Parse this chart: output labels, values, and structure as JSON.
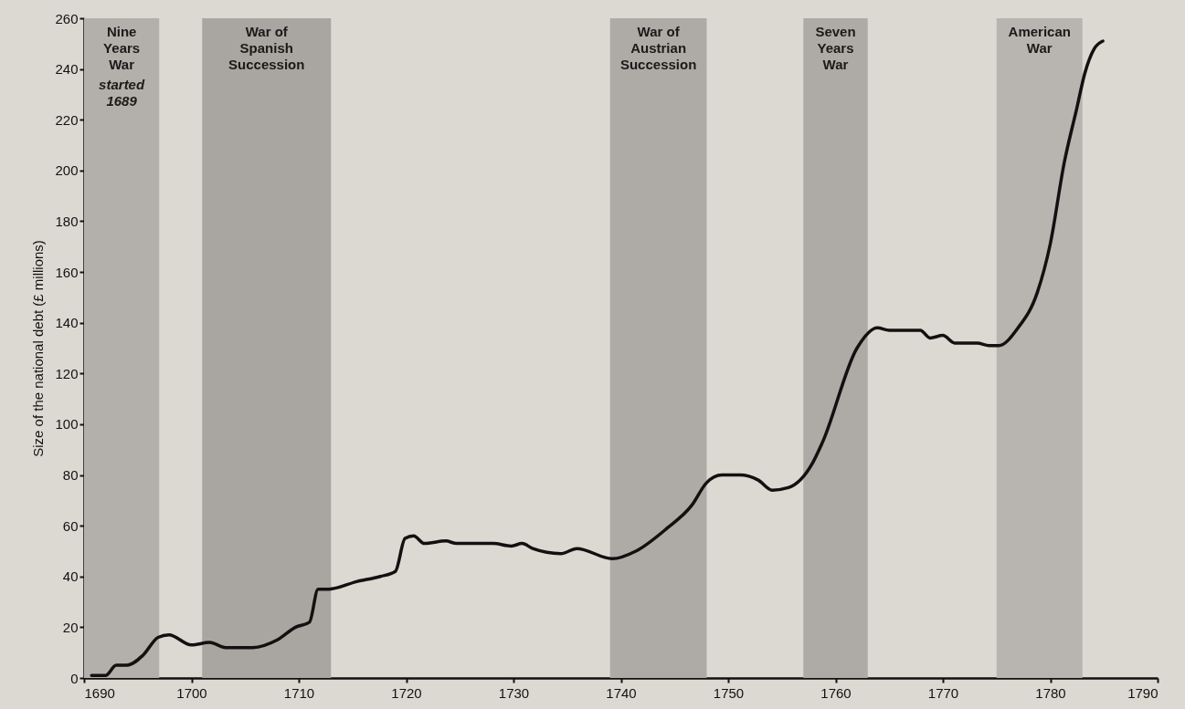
{
  "chart_data": {
    "type": "line",
    "ylabel": "Size of the national debt (£ millions)",
    "x": [
      1690.7,
      1692,
      1693,
      1694,
      1695.5,
      1696.9,
      1697.9,
      1700,
      1701.7,
      1703.2,
      1705.7,
      1708,
      1709.7,
      1711,
      1711.8,
      1712.8,
      1715.4,
      1717.6,
      1719,
      1719.9,
      1720.7,
      1721.7,
      1723.7,
      1724.7,
      1728.1,
      1729.8,
      1730.8,
      1731.8,
      1734.4,
      1735.9,
      1739.2,
      1741.4,
      1744.3,
      1746.6,
      1748,
      1749.4,
      1751.1,
      1752.8,
      1754.1,
      1755.6,
      1757.9,
      1758.8,
      1762,
      1763.9,
      1765,
      1767.9,
      1768.8,
      1770,
      1771.1,
      1773.2,
      1774.3,
      1775.2,
      1777,
      1778.8,
      1780,
      1781.3,
      1782.5,
      1783.2,
      1784.1,
      1784.9
    ],
    "series": [
      {
        "color": "#111111",
        "values": [
          1,
          1,
          5,
          5,
          9,
          16,
          17,
          13,
          14,
          12,
          12,
          15,
          20,
          22,
          35,
          35,
          38,
          40,
          42,
          55,
          56,
          53,
          54,
          53,
          53,
          52,
          53,
          51,
          49,
          51,
          47,
          50,
          59,
          68,
          77,
          80,
          80,
          78,
          74,
          75,
          85,
          93,
          130,
          138,
          137,
          137,
          134,
          135,
          132,
          132,
          131,
          131,
          138,
          152,
          171,
          203,
          225,
          238,
          248,
          251
        ]
      }
    ],
    "xlim": [
      1690,
      1790
    ],
    "xticks": [
      1690,
      1700,
      1710,
      1720,
      1730,
      1740,
      1750,
      1760,
      1770,
      1780,
      1790
    ],
    "ylim": [
      0,
      260
    ],
    "yticks": [
      0,
      20,
      40,
      60,
      80,
      100,
      120,
      140,
      160,
      180,
      200,
      220,
      240,
      260
    ],
    "grid": false,
    "line_style": "solid",
    "bands": [
      {
        "axis": "x",
        "from": 1690,
        "to": 1697,
        "label": "Nine\nYears\nWar",
        "color": "#b3afaa"
      },
      {
        "axis": "x",
        "from": 1701,
        "to": 1713,
        "label": "War of\nSpanish\nSuccession",
        "color": "#a9a5a0"
      },
      {
        "axis": "x",
        "from": 1739,
        "to": 1748,
        "label": "War of\nAustrian\nSuccession",
        "color": "#aeaaa5"
      },
      {
        "axis": "x",
        "from": 1757,
        "to": 1763,
        "label": "Seven\nYears\nWar",
        "color": "#aeaaa5"
      },
      {
        "axis": "x",
        "from": 1775,
        "to": 1783,
        "label": "American\nWar",
        "color": "#b8b4af"
      }
    ],
    "annotations": [
      "started\n1689"
    ]
  }
}
